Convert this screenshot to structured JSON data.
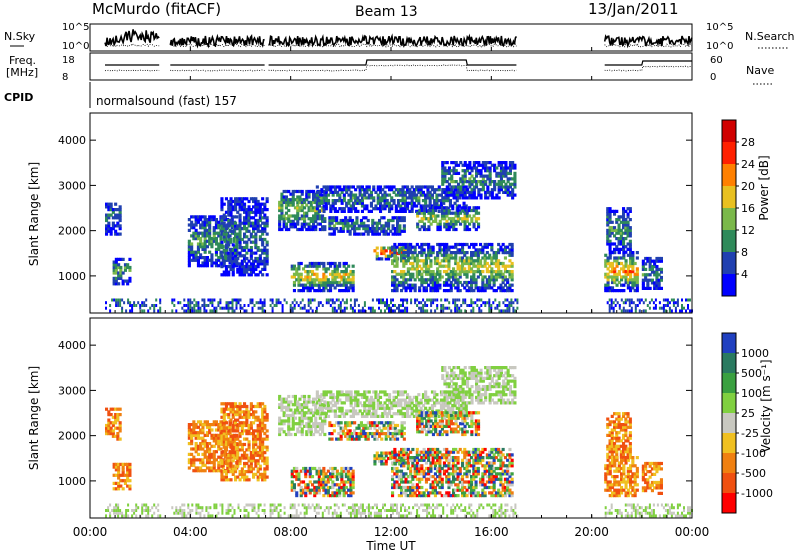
{
  "header": {
    "station": "McMurdo (fitACF)",
    "beam": "Beam 13",
    "date": "13/Jan/2011"
  },
  "status_panel": {
    "nsky_label": "N.Sky",
    "nsearch_label": "N.Search",
    "left_ticks": [
      "10^5",
      "10^0"
    ],
    "right_ticks": [
      "10^5",
      "10^0"
    ],
    "freq_label_1": "Freq.",
    "freq_label_2": "[MHz]",
    "freq_ticks": [
      "18",
      "8"
    ],
    "nave_label": "Nave",
    "nave_ticks": [
      "60",
      "0"
    ],
    "cpid_label": "CPID",
    "cpid_text": "normalsound (fast) 157"
  },
  "chart_data": [
    {
      "type": "heatmap",
      "name": "power",
      "ylabel": "Slant Range [km]",
      "yticks": [
        "1000",
        "2000",
        "3000",
        "4000"
      ],
      "yvalues": [
        1000,
        2000,
        3000,
        4000
      ],
      "ylim": [
        180,
        4600
      ],
      "xlim": [
        0,
        24
      ],
      "colorbar_label": "Power [dB]",
      "colorbar_ticks": [
        "4",
        "8",
        "12",
        "16",
        "20",
        "24",
        "28"
      ],
      "colors": [
        "#0000ff",
        "#2040b0",
        "#2f8a5a",
        "#7ab84a",
        "#e8c020",
        "#ff8000",
        "#ff2000",
        "#d00000"
      ]
    },
    {
      "type": "heatmap",
      "name": "velocity",
      "ylabel": "Slant Range [km]",
      "yticks": [
        "1000",
        "2000",
        "3000",
        "4000"
      ],
      "yvalues": [
        1000,
        2000,
        3000,
        4000
      ],
      "ylim": [
        180,
        4600
      ],
      "xlim": [
        0,
        24
      ],
      "colorbar_label": "Velocity [m s⁻¹]",
      "colorbar_ticks": [
        "1000",
        "500",
        "100",
        "25",
        "-25",
        "-100",
        "-500",
        "-1000"
      ],
      "colors": [
        "#2040c0",
        "#2a7a60",
        "#3aa040",
        "#80d040",
        "#c8c8c0",
        "#f0c020",
        "#f08010",
        "#f05010",
        "#ff0000"
      ]
    }
  ],
  "x_axis": {
    "label": "Time UT",
    "ticks": [
      "00:00",
      "04:00",
      "08:00",
      "12:00",
      "16:00",
      "20:00",
      "00:00"
    ],
    "values": [
      0,
      4,
      8,
      12,
      16,
      20,
      24
    ]
  },
  "data_gaps": [
    [
      0.0,
      0.6
    ],
    [
      2.8,
      3.2
    ],
    [
      7.0,
      7.1
    ],
    [
      17.0,
      20.5
    ]
  ]
}
